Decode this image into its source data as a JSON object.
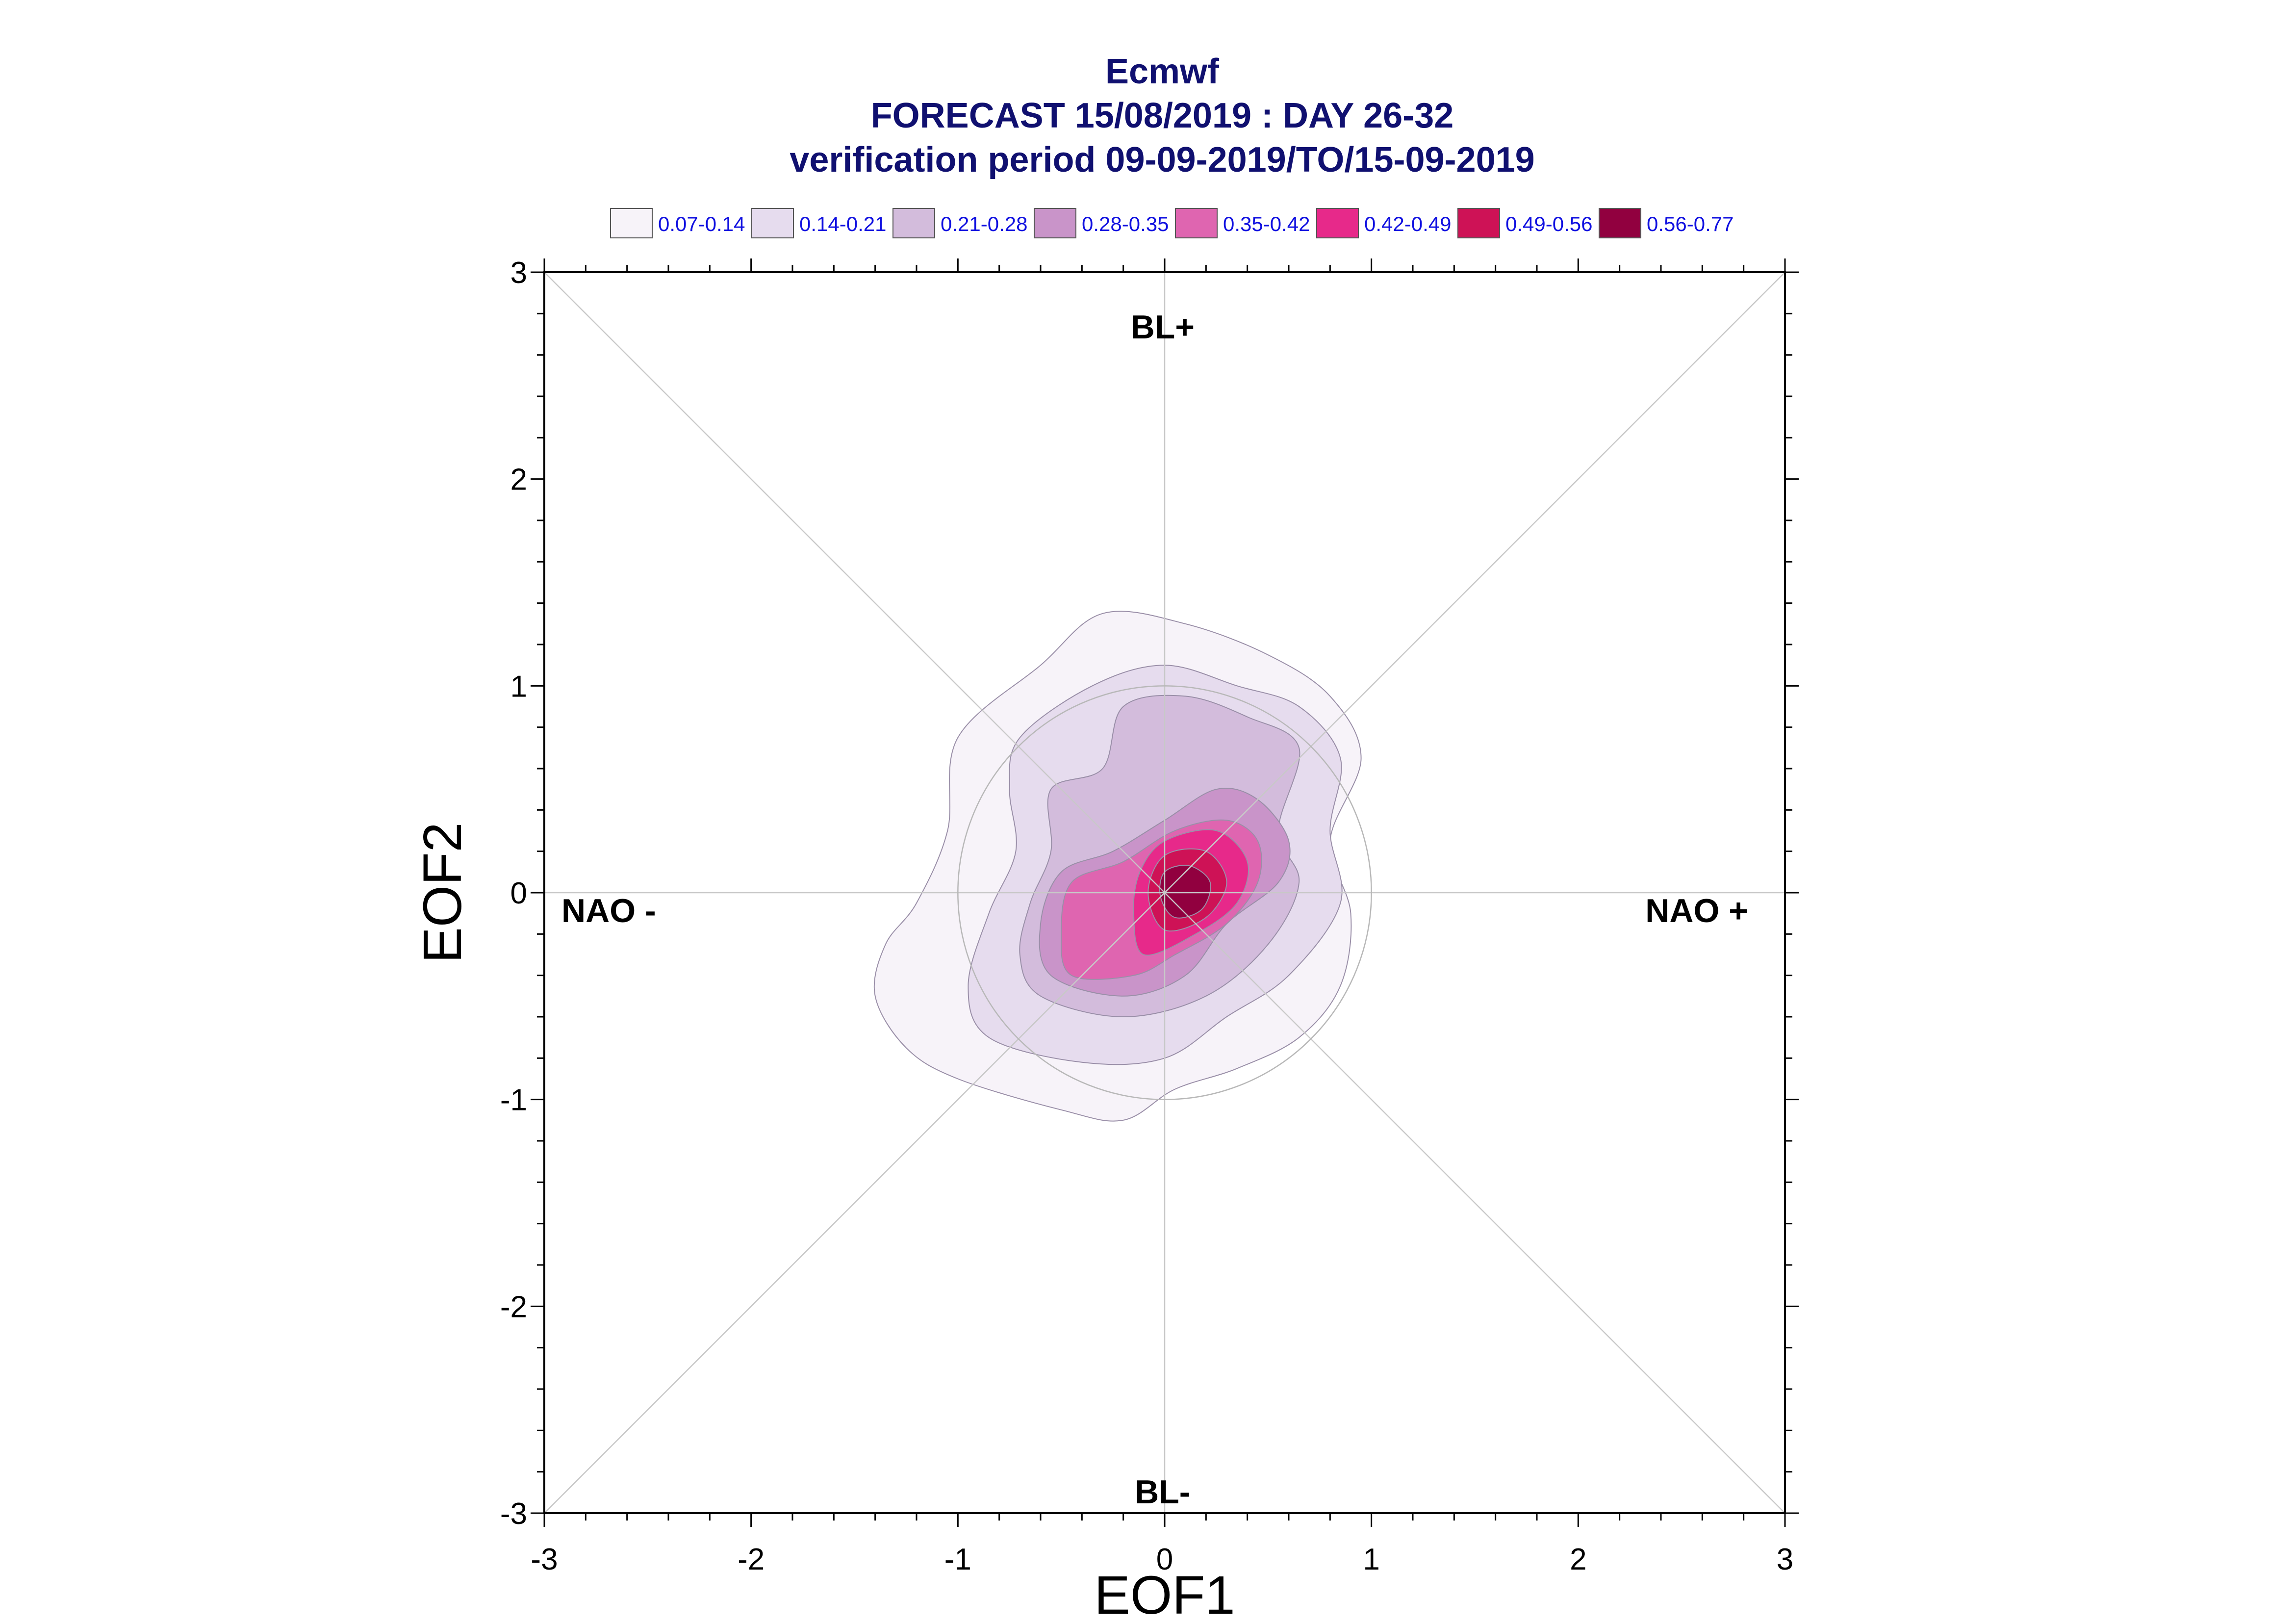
{
  "chart_data": {
    "type": "contour",
    "title": "Ecmwf",
    "subtitle_lines": [
      "FORECAST 15/08/2019 : DAY 26-32",
      "verification period 09-09-2019/TO/15-09-2019"
    ],
    "xlabel": "EOF1",
    "ylabel": "EOF2",
    "xlim": [
      -3,
      3
    ],
    "ylim": [
      -3,
      3
    ],
    "xticks": [
      "-3",
      "-2",
      "-1",
      "0",
      "1",
      "2",
      "3"
    ],
    "yticks": [
      "-3",
      "-2",
      "-1",
      "0",
      "1",
      "2",
      "3"
    ],
    "regime_labels": {
      "top": "BL+",
      "bottom": "BL-",
      "left": "NAO -",
      "right": "NAO +"
    },
    "reference_circle_radius": 1,
    "grid": "center cross and diagonals",
    "legend_position": "top",
    "legend": [
      {
        "label": "0.07-0.14",
        "color": "#f7f3f9"
      },
      {
        "label": "0.14-0.21",
        "color": "#e6dcee"
      },
      {
        "label": "0.21-0.28",
        "color": "#d3bcdc"
      },
      {
        "label": "0.28-0.35",
        "color": "#c994c9"
      },
      {
        "label": "0.35-0.42",
        "color": "#df65b0"
      },
      {
        "label": "0.42-0.49",
        "color": "#e7298a"
      },
      {
        "label": "0.49-0.56",
        "color": "#ce1256"
      },
      {
        "label": "0.56-0.77",
        "color": "#91003f"
      }
    ],
    "density_peak": {
      "x": 0.1,
      "y": 0.0,
      "value_range": "0.56-0.77"
    },
    "contours": [
      {
        "level": "0.07-0.14",
        "points": [
          [
            -1.0,
            -0.9
          ],
          [
            -0.5,
            -1.05
          ],
          [
            -0.2,
            -1.1
          ],
          [
            0.05,
            -0.95
          ],
          [
            0.35,
            -0.85
          ],
          [
            0.65,
            -0.7
          ],
          [
            0.85,
            -0.45
          ],
          [
            0.9,
            -0.1
          ],
          [
            0.8,
            0.25
          ],
          [
            0.95,
            0.65
          ],
          [
            0.8,
            0.95
          ],
          [
            0.5,
            1.15
          ],
          [
            0.1,
            1.3
          ],
          [
            -0.3,
            1.35
          ],
          [
            -0.6,
            1.1
          ],
          [
            -1.0,
            0.75
          ],
          [
            -1.05,
            0.3
          ],
          [
            -1.2,
            -0.05
          ],
          [
            -1.35,
            -0.25
          ],
          [
            -1.4,
            -0.5
          ],
          [
            -1.25,
            -0.75
          ]
        ]
      },
      {
        "level": "0.14-0.21",
        "points": [
          [
            -0.85,
            -0.7
          ],
          [
            -0.4,
            -0.82
          ],
          [
            0.0,
            -0.8
          ],
          [
            0.3,
            -0.6
          ],
          [
            0.6,
            -0.4
          ],
          [
            0.85,
            -0.05
          ],
          [
            0.8,
            0.3
          ],
          [
            0.85,
            0.65
          ],
          [
            0.65,
            0.9
          ],
          [
            0.35,
            1.0
          ],
          [
            0.0,
            1.1
          ],
          [
            -0.35,
            1.0
          ],
          [
            -0.7,
            0.75
          ],
          [
            -0.75,
            0.5
          ],
          [
            -0.72,
            0.2
          ],
          [
            -0.85,
            -0.1
          ],
          [
            -0.95,
            -0.45
          ]
        ]
      },
      {
        "level": "0.21-0.28",
        "points": [
          [
            -0.6,
            -0.5
          ],
          [
            -0.2,
            -0.6
          ],
          [
            0.2,
            -0.5
          ],
          [
            0.5,
            -0.25
          ],
          [
            0.65,
            0.05
          ],
          [
            0.55,
            0.3
          ],
          [
            0.65,
            0.7
          ],
          [
            0.4,
            0.85
          ],
          [
            0.1,
            0.95
          ],
          [
            -0.2,
            0.9
          ],
          [
            -0.3,
            0.6
          ],
          [
            -0.55,
            0.5
          ],
          [
            -0.55,
            0.2
          ],
          [
            -0.65,
            -0.05
          ],
          [
            -0.7,
            -0.3
          ]
        ]
      },
      {
        "level": "0.28-0.35",
        "points": [
          [
            -0.55,
            -0.4
          ],
          [
            -0.2,
            -0.5
          ],
          [
            0.1,
            -0.4
          ],
          [
            0.3,
            -0.15
          ],
          [
            0.55,
            0.05
          ],
          [
            0.6,
            0.25
          ],
          [
            0.45,
            0.45
          ],
          [
            0.25,
            0.5
          ],
          [
            0.0,
            0.35
          ],
          [
            -0.25,
            0.2
          ],
          [
            -0.5,
            0.1
          ],
          [
            -0.6,
            -0.15
          ]
        ]
      },
      {
        "level": "0.35-0.42",
        "points": [
          [
            -0.45,
            -0.4
          ],
          [
            -0.15,
            -0.4
          ],
          [
            0.05,
            -0.3
          ],
          [
            0.3,
            -0.15
          ],
          [
            0.45,
            0.05
          ],
          [
            0.45,
            0.25
          ],
          [
            0.3,
            0.35
          ],
          [
            0.05,
            0.3
          ],
          [
            -0.2,
            0.15
          ],
          [
            -0.45,
            0.05
          ],
          [
            -0.5,
            -0.2
          ]
        ]
      },
      {
        "level": "0.42-0.49",
        "points": [
          [
            -0.1,
            -0.3
          ],
          [
            0.15,
            -0.2
          ],
          [
            0.35,
            -0.05
          ],
          [
            0.4,
            0.15
          ],
          [
            0.25,
            0.3
          ],
          [
            0.0,
            0.25
          ],
          [
            -0.12,
            0.1
          ],
          [
            -0.15,
            -0.1
          ]
        ]
      },
      {
        "level": "0.49-0.56",
        "points": [
          [
            0.0,
            -0.18
          ],
          [
            0.2,
            -0.12
          ],
          [
            0.3,
            0.05
          ],
          [
            0.2,
            0.2
          ],
          [
            0.0,
            0.18
          ],
          [
            -0.08,
            0.0
          ]
        ]
      },
      {
        "level": "0.56-0.77",
        "points": [
          [
            0.05,
            -0.12
          ],
          [
            0.18,
            -0.08
          ],
          [
            0.22,
            0.05
          ],
          [
            0.12,
            0.13
          ],
          [
            0.0,
            0.1
          ],
          [
            -0.02,
            -0.02
          ]
        ]
      }
    ]
  }
}
